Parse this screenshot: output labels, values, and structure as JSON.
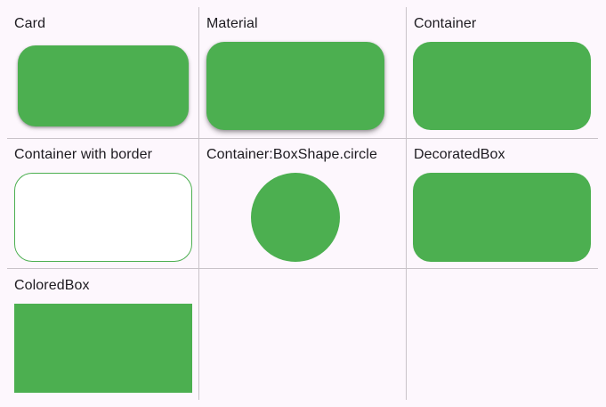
{
  "colors": {
    "background": "#fdf7fd",
    "accent": "#4caf50",
    "divider": "#c9c3c9",
    "text": "#1d1b20"
  },
  "cells": [
    {
      "label": "Card"
    },
    {
      "label": "Material"
    },
    {
      "label": "Container"
    },
    {
      "label": "Container with border"
    },
    {
      "label": "Container:BoxShape.circle"
    },
    {
      "label": "DecoratedBox"
    },
    {
      "label": "ColoredBox"
    }
  ]
}
